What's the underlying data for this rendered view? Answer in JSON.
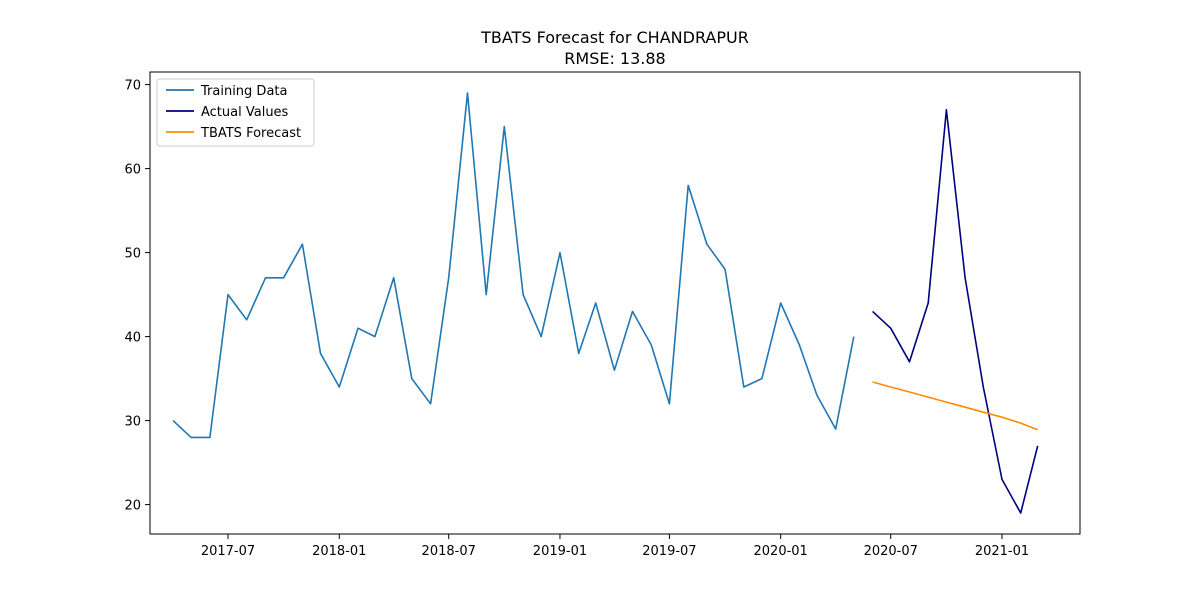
{
  "chart_data": {
    "type": "line",
    "title": "TBATS Forecast for CHANDRAPUR",
    "subtitle": "RMSE: 13.88",
    "xlabel": "",
    "ylabel": "",
    "ylim": [
      16.5,
      71.5
    ],
    "xlim": [
      "2017-02-22",
      "2021-05-10"
    ],
    "grid": false,
    "legend_position": "top-left",
    "x_ticks": [
      "2017-07",
      "2018-01",
      "2018-07",
      "2019-01",
      "2019-07",
      "2020-01",
      "2020-07",
      "2021-01"
    ],
    "y_ticks": [
      20,
      30,
      40,
      50,
      60,
      70
    ],
    "series": [
      {
        "name": "Training Data",
        "color": "#1f77b4",
        "x": [
          "2017-04-01",
          "2017-05-01",
          "2017-06-01",
          "2017-07-01",
          "2017-08-01",
          "2017-09-01",
          "2017-10-01",
          "2017-11-01",
          "2017-12-01",
          "2018-01-01",
          "2018-02-01",
          "2018-03-01",
          "2018-04-01",
          "2018-05-01",
          "2018-06-01",
          "2018-07-01",
          "2018-08-01",
          "2018-09-01",
          "2018-10-01",
          "2018-11-01",
          "2018-12-01",
          "2019-01-01",
          "2019-02-01",
          "2019-03-01",
          "2019-04-01",
          "2019-05-01",
          "2019-06-01",
          "2019-07-01",
          "2019-08-01",
          "2019-09-01",
          "2019-10-01",
          "2019-11-01",
          "2019-12-01",
          "2020-01-01",
          "2020-02-01",
          "2020-03-01",
          "2020-04-01",
          "2020-05-01"
        ],
        "values": [
          30,
          28,
          28,
          45,
          42,
          47,
          47,
          51,
          38,
          34,
          41,
          40,
          47,
          35,
          32,
          47,
          69,
          45,
          65,
          45,
          40,
          50,
          38,
          44,
          36,
          43,
          39,
          32,
          58,
          51,
          48,
          34,
          35,
          44,
          39,
          33,
          29,
          40
        ]
      },
      {
        "name": "Actual Values",
        "color": "#000080",
        "x": [
          "2020-06-01",
          "2020-07-01",
          "2020-08-01",
          "2020-09-01",
          "2020-10-01",
          "2020-11-01",
          "2020-12-01",
          "2021-01-01",
          "2021-02-01",
          "2021-03-01"
        ],
        "values": [
          43,
          41,
          37,
          44,
          67,
          47,
          34,
          23,
          19,
          27
        ]
      },
      {
        "name": "TBATS Forecast",
        "color": "#ff8c00",
        "x": [
          "2020-06-01",
          "2020-07-01",
          "2020-08-01",
          "2020-09-01",
          "2020-10-01",
          "2020-11-01",
          "2020-12-01",
          "2021-01-01",
          "2021-02-01",
          "2021-03-01"
        ],
        "values": [
          34.6,
          34.0,
          33.4,
          32.8,
          32.2,
          31.6,
          31.0,
          30.4,
          29.7,
          28.9
        ]
      }
    ]
  }
}
